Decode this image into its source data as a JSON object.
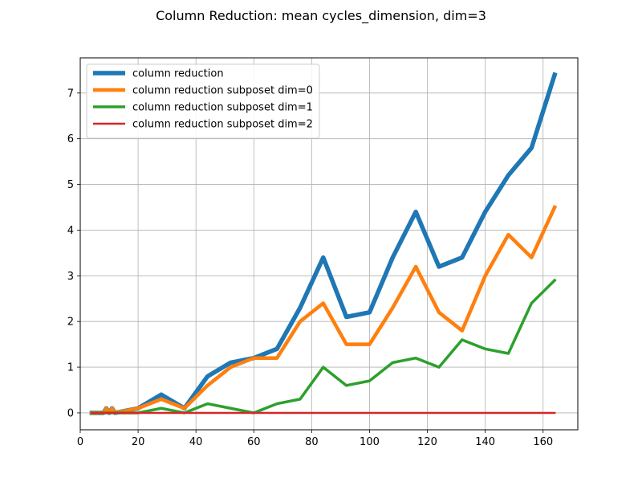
{
  "chart_data": {
    "type": "line",
    "title": "Column Reduction: mean cycles_dimension, dim=3",
    "xlabel": "",
    "ylabel": "",
    "xlim": [
      -0.0,
      172.0
    ],
    "ylim": [
      -0.37,
      7.77
    ],
    "xticks": [
      0,
      20,
      40,
      60,
      80,
      100,
      120,
      140,
      160
    ],
    "yticks": [
      0,
      1,
      2,
      3,
      4,
      5,
      6,
      7
    ],
    "grid": true,
    "legend_position": "upper left",
    "x": [
      4,
      8,
      9,
      10,
      11,
      12,
      20,
      28,
      36,
      44,
      52,
      60,
      68,
      76,
      84,
      92,
      100,
      108,
      116,
      124,
      132,
      140,
      148,
      156,
      164
    ],
    "series": [
      {
        "name": "column reduction",
        "color": "#1f77b4",
        "width": 5.5,
        "values": [
          0.0,
          0.0,
          0.1,
          0.0,
          0.1,
          0.0,
          0.1,
          0.4,
          0.1,
          0.8,
          1.1,
          1.2,
          1.4,
          2.3,
          3.4,
          2.1,
          2.2,
          3.4,
          4.4,
          3.2,
          3.4,
          4.4,
          5.2,
          5.8,
          7.4
        ]
      },
      {
        "name": "column reduction subposet dim=0",
        "color": "#ff7f0e",
        "width": 4.5,
        "values": [
          0.0,
          0.0,
          0.1,
          0.0,
          0.1,
          0.0,
          0.1,
          0.3,
          0.1,
          0.6,
          1.0,
          1.2,
          1.2,
          2.0,
          2.4,
          1.5,
          1.5,
          2.3,
          3.2,
          2.2,
          1.8,
          3.0,
          3.9,
          3.4,
          4.5
        ]
      },
      {
        "name": "column reduction subposet dim=1",
        "color": "#2ca02c",
        "width": 3.5,
        "values": [
          0.0,
          0.0,
          0.0,
          0.0,
          0.0,
          0.0,
          0.0,
          0.1,
          0.0,
          0.2,
          0.1,
          0.0,
          0.2,
          0.3,
          1.0,
          0.6,
          0.7,
          1.1,
          1.2,
          1.0,
          1.6,
          1.4,
          1.3,
          2.4,
          2.9
        ]
      },
      {
        "name": "column reduction subposet dim=2",
        "color": "#d62728",
        "width": 2.5,
        "values": [
          0.0,
          0.0,
          0.0,
          0.0,
          0.0,
          0.0,
          0.0,
          0.0,
          0.0,
          0.0,
          0.0,
          0.0,
          0.0,
          0.0,
          0.0,
          0.0,
          0.0,
          0.0,
          0.0,
          0.0,
          0.0,
          0.0,
          0.0,
          0.0,
          0.0
        ]
      }
    ]
  }
}
